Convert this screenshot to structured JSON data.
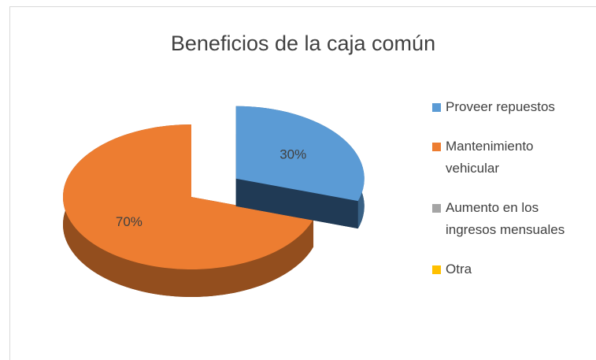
{
  "chart_data": {
    "type": "pie3d",
    "title": "Beneficios de la caja común",
    "categories": [
      "Proveer repuestos",
      "Mantenimiento vehicular",
      "Aumento en los ingresos mensuales",
      "Otra"
    ],
    "values": [
      30,
      70,
      0,
      0
    ],
    "value_labels": [
      "30%",
      "70%",
      null,
      null
    ],
    "colors": [
      "#5b9bd5",
      "#ed7d31",
      "#a5a5a5",
      "#ffc000"
    ],
    "exploded": [
      true,
      false,
      false,
      false
    ],
    "legend": "right"
  }
}
